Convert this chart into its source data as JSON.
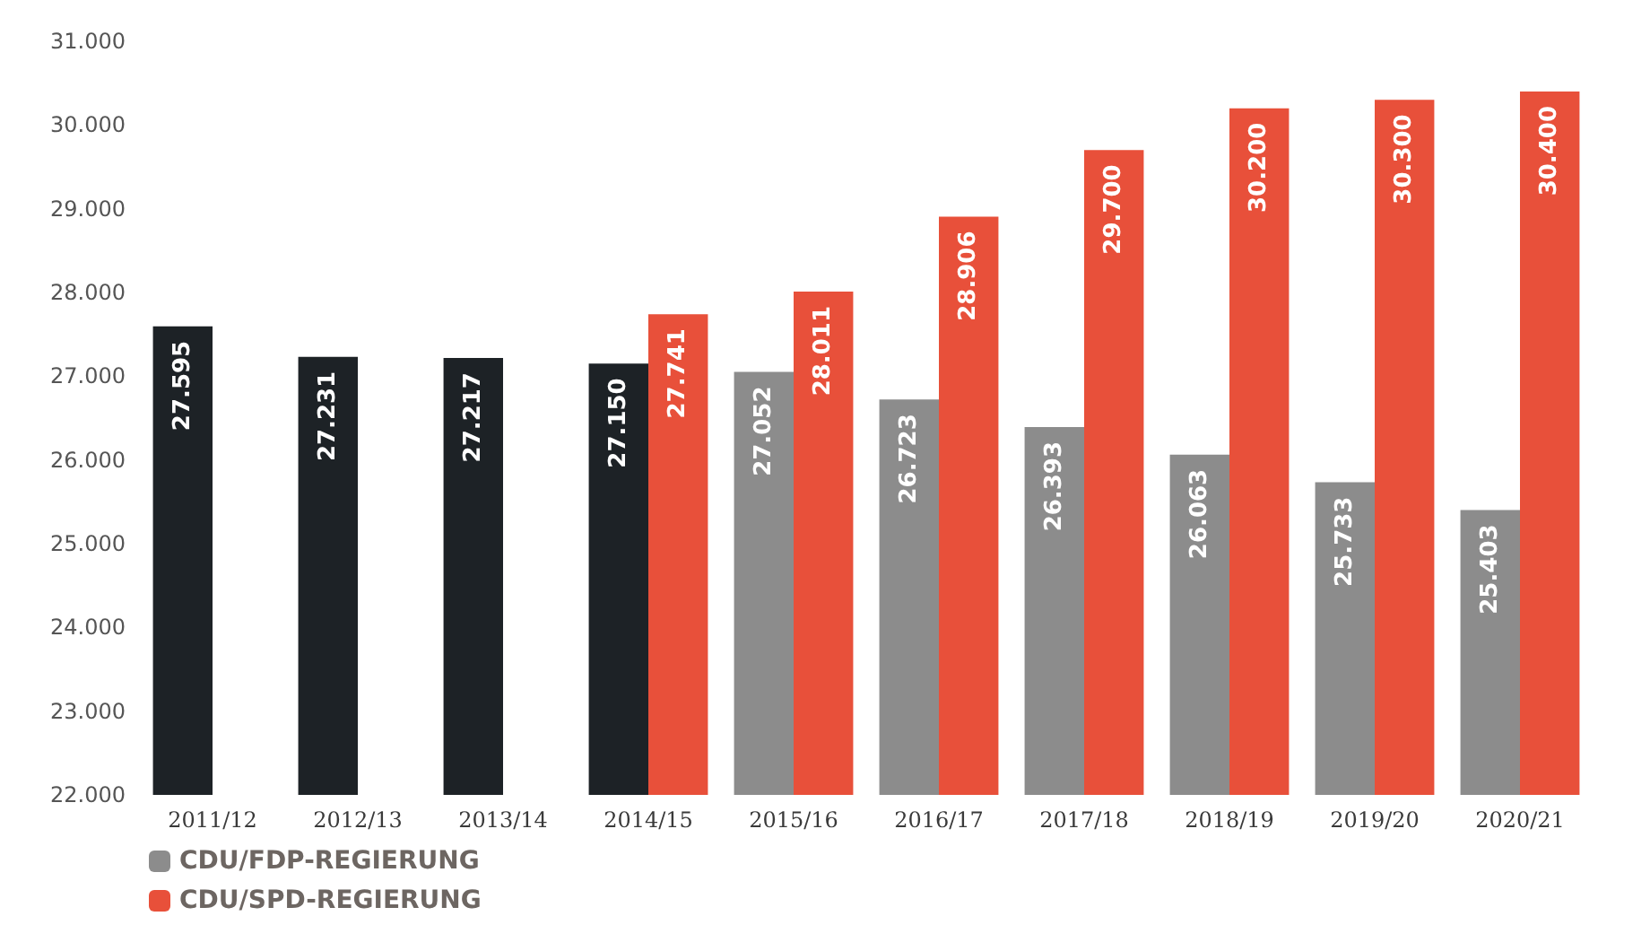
{
  "chart_data": {
    "type": "bar",
    "categories": [
      "2011/12",
      "2012/13",
      "2013/14",
      "2014/15",
      "2015/16",
      "2016/17",
      "2017/18",
      "2018/19",
      "2019/20",
      "2020/21"
    ],
    "series": [
      {
        "name": "CDU/FDP-REGIERUNG",
        "color": "#8c8c8c",
        "colors": [
          "#1d2226",
          "#1d2226",
          "#1d2226",
          "#1d2226",
          "#8c8c8c",
          "#8c8c8c",
          "#8c8c8c",
          "#8c8c8c",
          "#8c8c8c",
          "#8c8c8c"
        ],
        "values": [
          27595,
          27231,
          27217,
          27150,
          27052,
          26723,
          26393,
          26063,
          25733,
          25403
        ],
        "value_labels": [
          "27.595",
          "27.231",
          "27.217",
          "27.150",
          "27.052",
          "26.723",
          "26.393",
          "26.063",
          "25.733",
          "25.403"
        ]
      },
      {
        "name": "CDU/SPD-REGIERUNG",
        "color": "#e8503a",
        "values": [
          null,
          null,
          null,
          27741,
          28011,
          28906,
          29700,
          30200,
          30300,
          30400
        ],
        "value_labels": [
          null,
          null,
          null,
          "27.741",
          "28.011",
          "28.906",
          "29.700",
          "30.200",
          "30.300",
          "30.400"
        ]
      }
    ],
    "ylim": [
      22000,
      31000
    ],
    "yticks": [
      {
        "value": 22000,
        "label": "22.000"
      },
      {
        "value": 23000,
        "label": "23.000"
      },
      {
        "value": 24000,
        "label": "24.000"
      },
      {
        "value": 25000,
        "label": "25.000"
      },
      {
        "value": 26000,
        "label": "26.000"
      },
      {
        "value": 27000,
        "label": "27.000"
      },
      {
        "value": 28000,
        "label": "28.000"
      },
      {
        "value": 29000,
        "label": "29.000"
      },
      {
        "value": 30000,
        "label": "30.000"
      },
      {
        "value": 31000,
        "label": "31.000"
      }
    ],
    "grid": false,
    "legend": "bottom left"
  }
}
